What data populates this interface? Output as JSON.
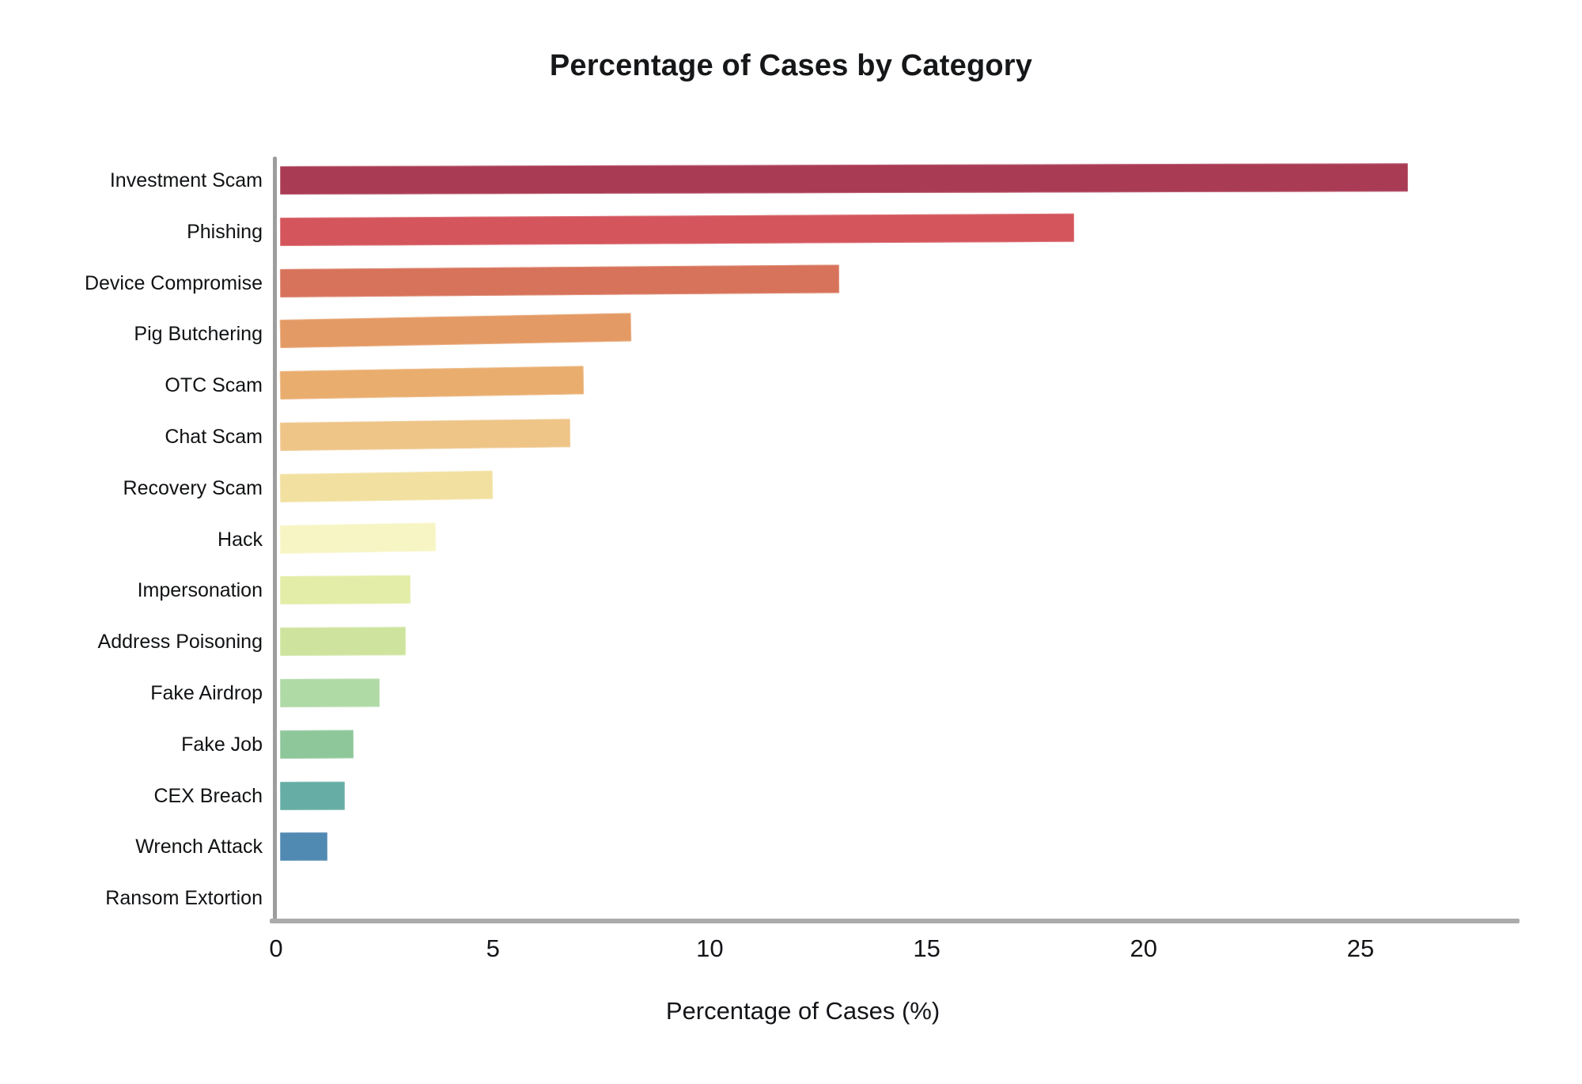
{
  "chart_data": {
    "type": "bar",
    "orientation": "horizontal",
    "title": "Percentage of Cases by Category",
    "xlabel": "Percentage of Cases (%)",
    "ylabel": "",
    "categories": [
      "Investment Scam",
      "Phishing",
      "Device Compromise",
      "Pig Butchering",
      "OTC Scam",
      "Chat Scam",
      "Recovery Scam",
      "Hack",
      "Impersonation",
      "Address Poisoning",
      "Fake Airdrop",
      "Fake Job",
      "CEX Breach",
      "Wrench Attack",
      "Ransom Extortion"
    ],
    "values": [
      26.0,
      18.3,
      12.9,
      8.1,
      7.0,
      6.7,
      4.9,
      3.6,
      3.0,
      2.9,
      2.3,
      1.7,
      1.5,
      1.1,
      0.0
    ],
    "colors": [
      "#AA3B55",
      "#D4555C",
      "#D7735A",
      "#E49A64",
      "#E9AD6E",
      "#EEC487",
      "#F2E0A0",
      "#F7F5C3",
      "#E4EDA7",
      "#CEE49E",
      "#AFD9A5",
      "#8EC79A",
      "#66AEA5",
      "#5089B2",
      "#3B6FB5"
    ],
    "x_ticks": [
      0,
      5,
      10,
      15,
      20,
      25
    ],
    "xlim": [
      0,
      28.5
    ],
    "grid": false,
    "legend": "none",
    "style": "sketch (slightly tilted bars, gray left and bottom spines only)",
    "axis_color": "#9d9d9d",
    "text_color": "#131518"
  }
}
